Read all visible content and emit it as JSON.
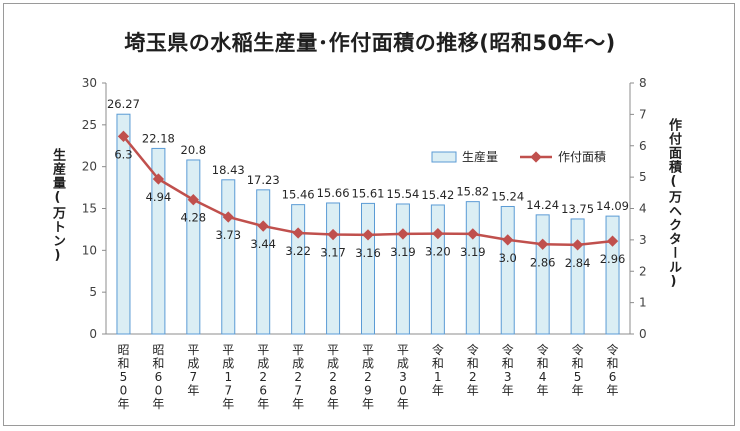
{
  "chart_data": {
    "type": "bar+line",
    "title": "埼玉県の水稲生産量･作付面積の推移(昭和50年～)",
    "categories": [
      "昭和50年",
      "昭和60年",
      "平成7年",
      "平成17年",
      "平成26年",
      "平成27年",
      "平成28年",
      "平成29年",
      "平成30年",
      "令和1年",
      "令和2年",
      "令和3年",
      "令和4年",
      "令和5年",
      "令和6年"
    ],
    "series": [
      {
        "name": "生産量",
        "type": "bar",
        "axis": "left",
        "values": [
          26.27,
          22.18,
          20.8,
          18.43,
          17.23,
          15.46,
          15.66,
          15.61,
          15.54,
          15.42,
          15.82,
          15.24,
          14.24,
          13.75,
          14.09
        ],
        "labels": [
          "26.27",
          "22.18",
          "20.8",
          "18.43",
          "17.23",
          "15.46",
          "15.66",
          "15.61",
          "15.54",
          "15.42",
          "15.82",
          "15.24",
          "14.24",
          "13.75",
          "14.09"
        ]
      },
      {
        "name": "作付面積",
        "type": "line",
        "axis": "right",
        "values": [
          6.3,
          4.94,
          4.28,
          3.73,
          3.44,
          3.22,
          3.17,
          3.16,
          3.19,
          3.2,
          3.19,
          3.0,
          2.86,
          2.84,
          2.96
        ],
        "labels": [
          "6.3",
          "4.94",
          "4.28",
          "3.73",
          "3.44",
          "3.22",
          "3.17",
          "3.16",
          "3.19",
          "3.20",
          "3.19",
          "3.0",
          "2.86",
          "2.84",
          "2.96"
        ]
      }
    ],
    "yleft": {
      "label": "生産量(万トン)",
      "range": [
        0,
        30
      ],
      "ticks": [
        "0",
        "5",
        "10",
        "15",
        "20",
        "25",
        "30"
      ]
    },
    "yright": {
      "label": "作付面積(万ヘクタール)",
      "range": [
        0,
        8
      ],
      "ticks": [
        "0",
        "1",
        "2",
        "3",
        "4",
        "5",
        "6",
        "7",
        "8"
      ]
    },
    "legend": "top-right",
    "grid": false,
    "colors": {
      "bar_fill": "#dbeef4",
      "bar_stroke": "#5b9bd5",
      "line": "#c0504d"
    }
  }
}
